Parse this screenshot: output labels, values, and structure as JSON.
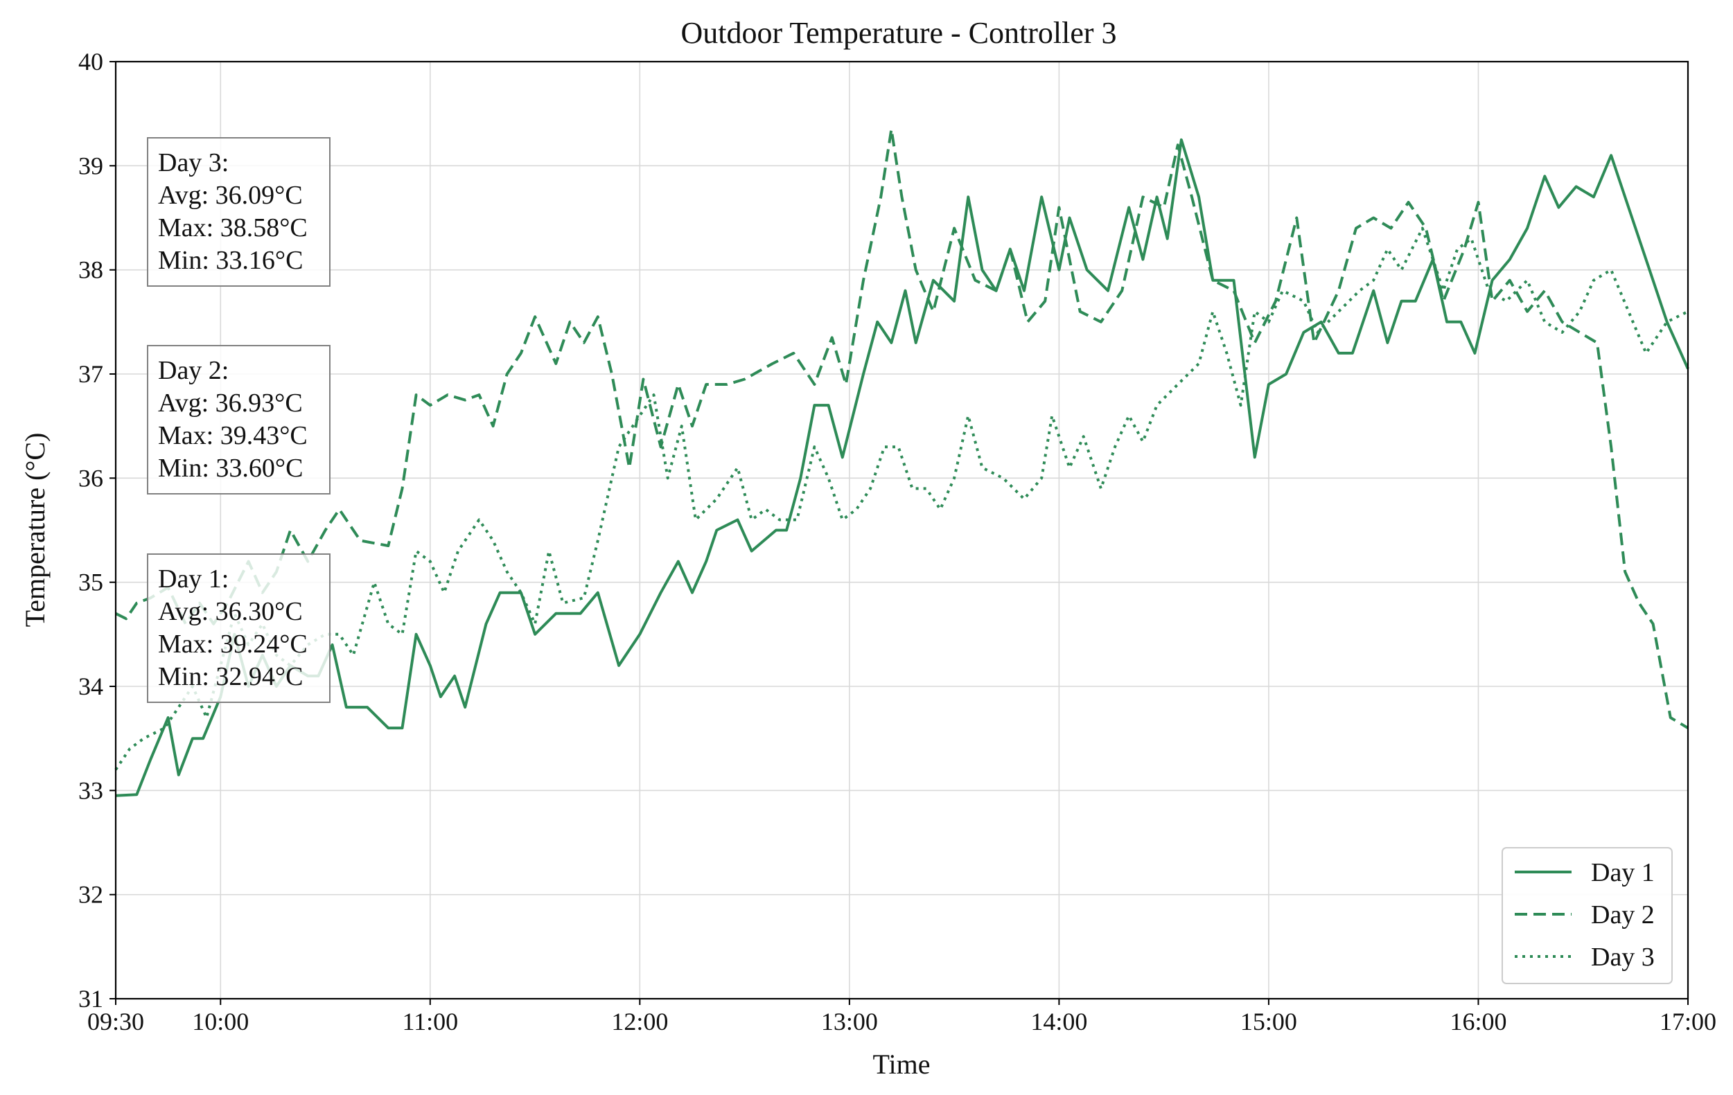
{
  "chart_data": {
    "type": "line",
    "title": "Outdoor Temperature - Controller 3",
    "xlabel": "Time",
    "ylabel": "Temperature (°C)",
    "xlim": [
      "09:30",
      "17:00"
    ],
    "ylim": [
      31,
      40
    ],
    "x_ticks": [
      "09:30",
      "10:00",
      "11:00",
      "12:00",
      "13:00",
      "14:00",
      "15:00",
      "16:00",
      "17:00"
    ],
    "y_ticks": [
      31,
      32,
      33,
      34,
      35,
      36,
      37,
      38,
      39,
      40
    ],
    "grid": true,
    "legend_position": "lower-right",
    "line_color": "#2e8b57",
    "series": [
      {
        "name": "Day 1",
        "style": "solid",
        "points": [
          [
            "09:30",
            32.95
          ],
          [
            "09:36",
            32.96
          ],
          [
            "09:40",
            33.3
          ],
          [
            "09:45",
            33.7
          ],
          [
            "09:48",
            33.15
          ],
          [
            "09:52",
            33.5
          ],
          [
            "09:55",
            33.5
          ],
          [
            "10:00",
            33.9
          ],
          [
            "10:04",
            34.5
          ],
          [
            "10:08",
            34.0
          ],
          [
            "10:12",
            34.3
          ],
          [
            "10:16",
            34.0
          ],
          [
            "10:20",
            34.2
          ],
          [
            "10:25",
            34.1
          ],
          [
            "10:28",
            34.1
          ],
          [
            "10:32",
            34.4
          ],
          [
            "10:36",
            33.8
          ],
          [
            "10:42",
            33.8
          ],
          [
            "10:48",
            33.6
          ],
          [
            "10:52",
            33.6
          ],
          [
            "10:56",
            34.5
          ],
          [
            "11:00",
            34.2
          ],
          [
            "11:03",
            33.9
          ],
          [
            "11:07",
            34.1
          ],
          [
            "11:10",
            33.8
          ],
          [
            "11:16",
            34.6
          ],
          [
            "11:20",
            34.9
          ],
          [
            "11:26",
            34.9
          ],
          [
            "11:30",
            34.5
          ],
          [
            "11:36",
            34.7
          ],
          [
            "11:43",
            34.7
          ],
          [
            "11:48",
            34.9
          ],
          [
            "11:54",
            34.2
          ],
          [
            "12:00",
            34.5
          ],
          [
            "12:06",
            34.9
          ],
          [
            "12:11",
            35.2
          ],
          [
            "12:15",
            34.9
          ],
          [
            "12:19",
            35.2
          ],
          [
            "12:22",
            35.5
          ],
          [
            "12:28",
            35.6
          ],
          [
            "12:32",
            35.3
          ],
          [
            "12:39",
            35.5
          ],
          [
            "12:42",
            35.5
          ],
          [
            "12:46",
            36.0
          ],
          [
            "12:50",
            36.7
          ],
          [
            "12:54",
            36.7
          ],
          [
            "12:58",
            36.2
          ],
          [
            "13:04",
            37.0
          ],
          [
            "13:08",
            37.5
          ],
          [
            "13:12",
            37.3
          ],
          [
            "13:16",
            37.8
          ],
          [
            "13:19",
            37.3
          ],
          [
            "13:24",
            37.9
          ],
          [
            "13:30",
            37.7
          ],
          [
            "13:34",
            38.7
          ],
          [
            "13:38",
            38.0
          ],
          [
            "13:42",
            37.8
          ],
          [
            "13:46",
            38.2
          ],
          [
            "13:50",
            37.8
          ],
          [
            "13:55",
            38.7
          ],
          [
            "14:00",
            38.0
          ],
          [
            "14:03",
            38.5
          ],
          [
            "14:08",
            38.0
          ],
          [
            "14:14",
            37.8
          ],
          [
            "14:20",
            38.6
          ],
          [
            "14:24",
            38.1
          ],
          [
            "14:28",
            38.7
          ],
          [
            "14:31",
            38.3
          ],
          [
            "14:35",
            39.25
          ],
          [
            "14:40",
            38.7
          ],
          [
            "14:44",
            37.9
          ],
          [
            "14:50",
            37.9
          ],
          [
            "14:56",
            36.2
          ],
          [
            "15:00",
            36.9
          ],
          [
            "15:05",
            37.0
          ],
          [
            "15:10",
            37.4
          ],
          [
            "15:15",
            37.5
          ],
          [
            "15:20",
            37.2
          ],
          [
            "15:24",
            37.2
          ],
          [
            "15:30",
            37.8
          ],
          [
            "15:34",
            37.3
          ],
          [
            "15:38",
            37.7
          ],
          [
            "15:42",
            37.7
          ],
          [
            "15:47",
            38.1
          ],
          [
            "15:51",
            37.5
          ],
          [
            "15:55",
            37.5
          ],
          [
            "15:59",
            37.2
          ],
          [
            "16:04",
            37.9
          ],
          [
            "16:09",
            38.1
          ],
          [
            "16:14",
            38.4
          ],
          [
            "16:19",
            38.9
          ],
          [
            "16:23",
            38.6
          ],
          [
            "16:28",
            38.8
          ],
          [
            "16:33",
            38.7
          ],
          [
            "16:38",
            39.1
          ],
          [
            "16:42",
            38.7
          ],
          [
            "16:48",
            38.1
          ],
          [
            "16:54",
            37.5
          ],
          [
            "17:00",
            37.05
          ]
        ]
      },
      {
        "name": "Day 2",
        "style": "dashed",
        "points": [
          [
            "09:30",
            34.7
          ],
          [
            "09:33",
            34.65
          ],
          [
            "09:36",
            34.8
          ],
          [
            "09:40",
            34.85
          ],
          [
            "09:45",
            34.95
          ],
          [
            "09:50",
            34.6
          ],
          [
            "09:54",
            34.8
          ],
          [
            "09:58",
            34.6
          ],
          [
            "10:02",
            34.8
          ],
          [
            "10:08",
            35.2
          ],
          [
            "10:12",
            34.9
          ],
          [
            "10:16",
            35.1
          ],
          [
            "10:20",
            35.5
          ],
          [
            "10:25",
            35.2
          ],
          [
            "10:30",
            35.5
          ],
          [
            "10:34",
            35.7
          ],
          [
            "10:40",
            35.4
          ],
          [
            "10:48",
            35.35
          ],
          [
            "10:52",
            35.9
          ],
          [
            "10:56",
            36.8
          ],
          [
            "11:00",
            36.7
          ],
          [
            "11:05",
            36.8
          ],
          [
            "11:10",
            36.75
          ],
          [
            "11:14",
            36.8
          ],
          [
            "11:18",
            36.5
          ],
          [
            "11:22",
            37.0
          ],
          [
            "11:26",
            37.2
          ],
          [
            "11:30",
            37.55
          ],
          [
            "11:36",
            37.1
          ],
          [
            "11:40",
            37.5
          ],
          [
            "11:44",
            37.3
          ],
          [
            "11:48",
            37.55
          ],
          [
            "11:52",
            37.0
          ],
          [
            "11:57",
            36.1
          ],
          [
            "12:01",
            36.95
          ],
          [
            "12:06",
            36.3
          ],
          [
            "12:11",
            36.9
          ],
          [
            "12:15",
            36.5
          ],
          [
            "12:19",
            36.9
          ],
          [
            "12:25",
            36.9
          ],
          [
            "12:30",
            36.95
          ],
          [
            "12:38",
            37.1
          ],
          [
            "12:44",
            37.2
          ],
          [
            "12:50",
            36.9
          ],
          [
            "12:55",
            37.35
          ],
          [
            "12:59",
            36.9
          ],
          [
            "13:04",
            37.9
          ],
          [
            "13:09",
            38.7
          ],
          [
            "13:12",
            39.35
          ],
          [
            "13:15",
            38.7
          ],
          [
            "13:19",
            38.0
          ],
          [
            "13:24",
            37.6
          ],
          [
            "13:30",
            38.4
          ],
          [
            "13:36",
            37.9
          ],
          [
            "13:42",
            37.8
          ],
          [
            "13:46",
            38.2
          ],
          [
            "13:51",
            37.5
          ],
          [
            "13:56",
            37.7
          ],
          [
            "14:00",
            38.6
          ],
          [
            "14:06",
            37.6
          ],
          [
            "14:12",
            37.5
          ],
          [
            "14:18",
            37.8
          ],
          [
            "14:24",
            38.7
          ],
          [
            "14:30",
            38.6
          ],
          [
            "14:34",
            39.2
          ],
          [
            "14:38",
            38.7
          ],
          [
            "14:44",
            37.9
          ],
          [
            "14:50",
            37.8
          ],
          [
            "14:56",
            37.3
          ],
          [
            "15:02",
            37.7
          ],
          [
            "15:08",
            38.5
          ],
          [
            "15:13",
            37.3
          ],
          [
            "15:20",
            37.8
          ],
          [
            "15:25",
            38.4
          ],
          [
            "15:30",
            38.5
          ],
          [
            "15:35",
            38.4
          ],
          [
            "15:40",
            38.65
          ],
          [
            "15:45",
            38.4
          ],
          [
            "15:50",
            37.7
          ],
          [
            "15:56",
            38.2
          ],
          [
            "16:00",
            38.65
          ],
          [
            "16:04",
            37.7
          ],
          [
            "16:09",
            37.9
          ],
          [
            "16:14",
            37.6
          ],
          [
            "16:19",
            37.8
          ],
          [
            "16:24",
            37.5
          ],
          [
            "16:29",
            37.4
          ],
          [
            "16:34",
            37.3
          ],
          [
            "16:38",
            36.3
          ],
          [
            "16:42",
            35.1
          ],
          [
            "16:46",
            34.8
          ],
          [
            "16:50",
            34.6
          ],
          [
            "16:55",
            33.7
          ],
          [
            "17:00",
            33.6
          ]
        ]
      },
      {
        "name": "Day 3",
        "style": "dotted",
        "points": [
          [
            "09:30",
            33.2
          ],
          [
            "09:34",
            33.4
          ],
          [
            "09:38",
            33.5
          ],
          [
            "09:44",
            33.6
          ],
          [
            "09:48",
            33.8
          ],
          [
            "09:52",
            34.0
          ],
          [
            "09:56",
            33.7
          ],
          [
            "10:00",
            34.2
          ],
          [
            "10:04",
            34.7
          ],
          [
            "10:08",
            34.4
          ],
          [
            "10:12",
            34.6
          ],
          [
            "10:16",
            34.3
          ],
          [
            "10:20",
            34.2
          ],
          [
            "10:25",
            34.4
          ],
          [
            "10:30",
            34.5
          ],
          [
            "10:34",
            34.5
          ],
          [
            "10:38",
            34.3
          ],
          [
            "10:44",
            35.0
          ],
          [
            "10:48",
            34.6
          ],
          [
            "10:52",
            34.5
          ],
          [
            "10:56",
            35.3
          ],
          [
            "11:00",
            35.2
          ],
          [
            "11:04",
            34.9
          ],
          [
            "11:08",
            35.3
          ],
          [
            "11:14",
            35.6
          ],
          [
            "11:18",
            35.4
          ],
          [
            "11:22",
            35.1
          ],
          [
            "11:26",
            34.9
          ],
          [
            "11:30",
            34.6
          ],
          [
            "11:34",
            35.3
          ],
          [
            "11:38",
            34.8
          ],
          [
            "11:44",
            34.85
          ],
          [
            "11:48",
            35.4
          ],
          [
            "11:54",
            36.3
          ],
          [
            "12:00",
            36.6
          ],
          [
            "12:04",
            36.8
          ],
          [
            "12:08",
            36.0
          ],
          [
            "12:12",
            36.5
          ],
          [
            "12:16",
            35.6
          ],
          [
            "12:22",
            35.8
          ],
          [
            "12:28",
            36.1
          ],
          [
            "12:32",
            35.6
          ],
          [
            "12:36",
            35.7
          ],
          [
            "12:40",
            35.6
          ],
          [
            "12:45",
            35.6
          ],
          [
            "12:50",
            36.3
          ],
          [
            "12:54",
            36.0
          ],
          [
            "12:58",
            35.6
          ],
          [
            "13:02",
            35.7
          ],
          [
            "13:06",
            35.9
          ],
          [
            "13:10",
            36.3
          ],
          [
            "13:14",
            36.3
          ],
          [
            "13:18",
            35.9
          ],
          [
            "13:22",
            35.9
          ],
          [
            "13:26",
            35.7
          ],
          [
            "13:30",
            36.0
          ],
          [
            "13:34",
            36.6
          ],
          [
            "13:38",
            36.1
          ],
          [
            "13:44",
            36.0
          ],
          [
            "13:50",
            35.8
          ],
          [
            "13:55",
            36.0
          ],
          [
            "13:58",
            36.6
          ],
          [
            "14:03",
            36.1
          ],
          [
            "14:07",
            36.4
          ],
          [
            "14:12",
            35.9
          ],
          [
            "14:16",
            36.3
          ],
          [
            "14:20",
            36.6
          ],
          [
            "14:24",
            36.35
          ],
          [
            "14:28",
            36.7
          ],
          [
            "14:34",
            36.9
          ],
          [
            "14:40",
            37.1
          ],
          [
            "14:44",
            37.6
          ],
          [
            "14:48",
            37.2
          ],
          [
            "14:52",
            36.7
          ],
          [
            "14:56",
            37.6
          ],
          [
            "15:00",
            37.5
          ],
          [
            "15:04",
            37.8
          ],
          [
            "15:10",
            37.7
          ],
          [
            "15:14",
            37.4
          ],
          [
            "15:20",
            37.6
          ],
          [
            "15:26",
            37.8
          ],
          [
            "15:30",
            37.9
          ],
          [
            "15:34",
            38.2
          ],
          [
            "15:38",
            38.0
          ],
          [
            "15:44",
            38.4
          ],
          [
            "15:50",
            37.8
          ],
          [
            "15:54",
            38.2
          ],
          [
            "15:58",
            38.3
          ],
          [
            "16:03",
            37.8
          ],
          [
            "16:08",
            37.7
          ],
          [
            "16:14",
            37.9
          ],
          [
            "16:19",
            37.5
          ],
          [
            "16:24",
            37.4
          ],
          [
            "16:29",
            37.6
          ],
          [
            "16:33",
            37.9
          ],
          [
            "16:38",
            38.0
          ],
          [
            "16:43",
            37.6
          ],
          [
            "16:48",
            37.2
          ],
          [
            "16:54",
            37.5
          ],
          [
            "17:00",
            37.6
          ]
        ]
      }
    ],
    "annotations": [
      {
        "lines": [
          "Day 3:",
          "Avg: 36.09°C",
          "Max: 38.58°C",
          "Min: 33.16°C"
        ]
      },
      {
        "lines": [
          "Day 2:",
          "Avg: 36.93°C",
          "Max: 39.43°C",
          "Min: 33.60°C"
        ]
      },
      {
        "lines": [
          "Day 1:",
          "Avg: 36.30°C",
          "Max: 39.24°C",
          "Min: 32.94°C"
        ]
      }
    ]
  }
}
